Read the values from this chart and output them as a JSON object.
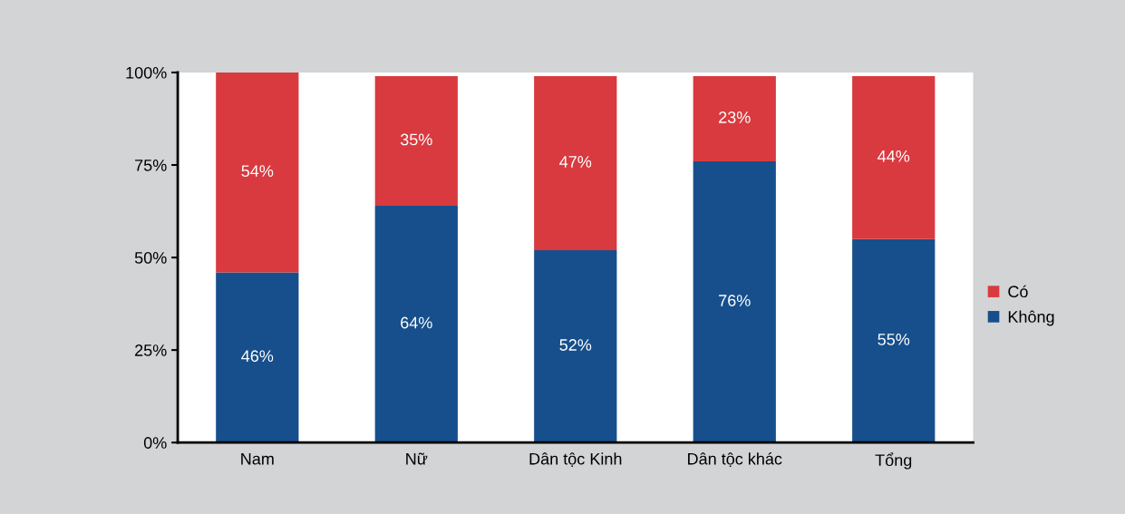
{
  "chart_data": {
    "type": "bar",
    "stacked": true,
    "categories": [
      "Nam",
      "Nữ",
      "Dân tộc Kinh",
      "Dân tộc khác",
      "Tổng"
    ],
    "series": [
      {
        "name": "Không",
        "color": "#164f8c",
        "values": [
          46,
          64,
          52,
          76,
          55
        ],
        "value_labels": [
          "46%",
          "64%",
          "52%",
          "76%",
          "55%"
        ]
      },
      {
        "name": "Có",
        "color": "#d93a3f",
        "values": [
          54,
          35,
          47,
          23,
          44
        ],
        "value_labels": [
          "54%",
          "35%",
          "47%",
          "23%",
          "44%"
        ]
      }
    ],
    "ylim": [
      0,
      100
    ],
    "yticks": [
      {
        "value": 0,
        "label": "0%"
      },
      {
        "value": 25,
        "label": "25%"
      },
      {
        "value": 50,
        "label": "50%"
      },
      {
        "value": 75,
        "label": "75%"
      },
      {
        "value": 100,
        "label": "100%"
      }
    ],
    "grid": false,
    "legend": "right"
  }
}
